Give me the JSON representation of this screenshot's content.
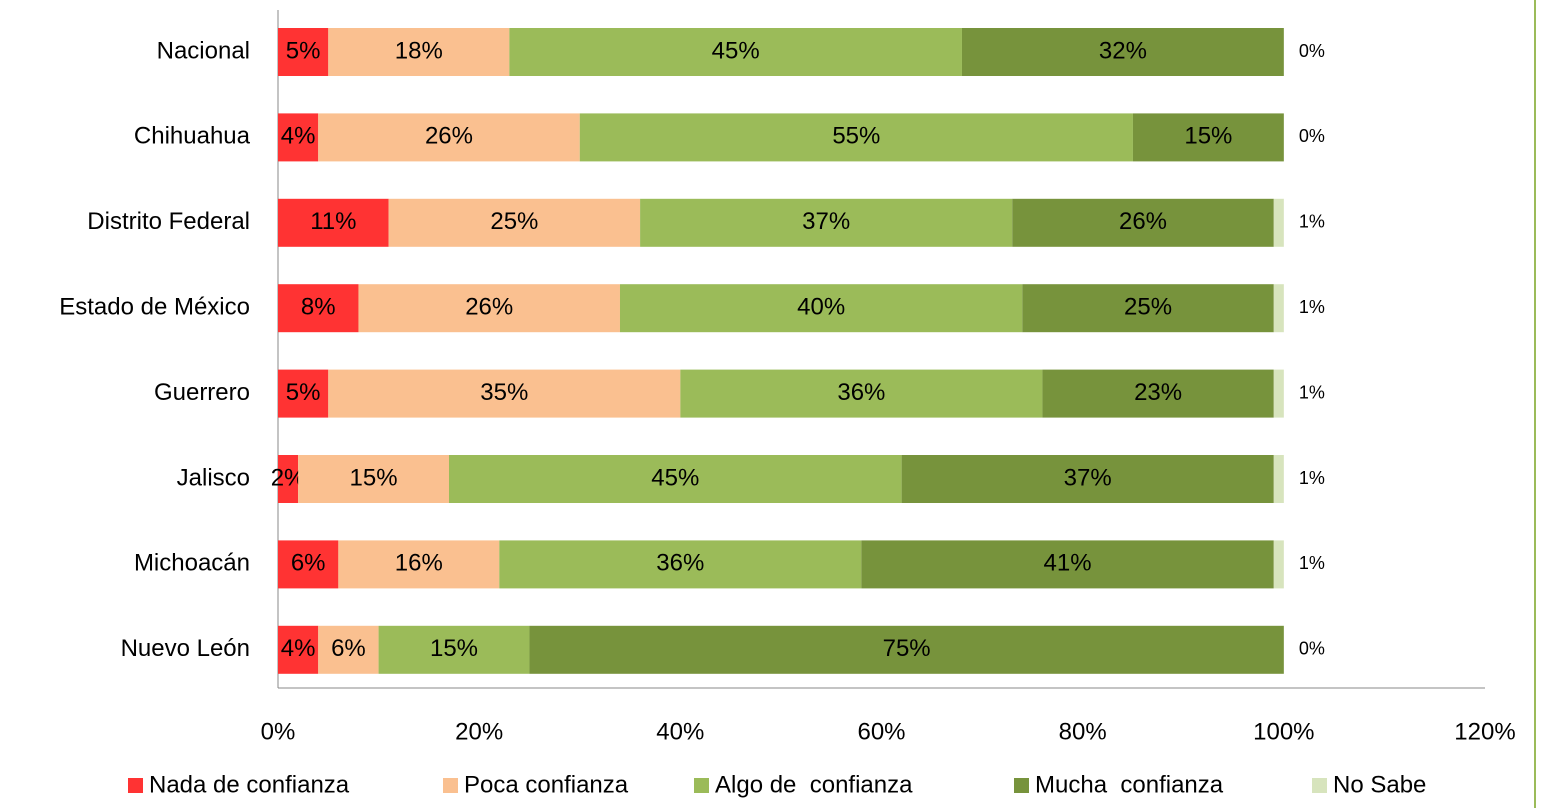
{
  "chart_data": {
    "type": "stacked-bar-horizontal",
    "categories": [
      "Nacional",
      "Chihuahua",
      "Distrito Federal",
      "Estado de México",
      "Guerrero",
      "Jalisco",
      "Michoacán",
      "Nuevo León"
    ],
    "series": [
      {
        "name": "Nada de confianza",
        "color": "#ff3333",
        "values": [
          5,
          4,
          11,
          8,
          5,
          2,
          6,
          4
        ],
        "value_labels": [
          "5%",
          "4%",
          "11%",
          "8%",
          "5%",
          "2%",
          "6%",
          "4%"
        ]
      },
      {
        "name": "Poca confianza",
        "color": "#fac090",
        "values": [
          18,
          26,
          25,
          26,
          35,
          15,
          16,
          6
        ],
        "value_labels": [
          "18%",
          "26%",
          "25%",
          "26%",
          "35%",
          "15%",
          "16%",
          "6%"
        ]
      },
      {
        "name": "Algo de  confianza",
        "color": "#9bbb59",
        "values": [
          45,
          55,
          37,
          40,
          36,
          45,
          36,
          15
        ],
        "value_labels": [
          "45%",
          "55%",
          "37%",
          "40%",
          "36%",
          "45%",
          "36%",
          "15%"
        ]
      },
      {
        "name": "Mucha  confianza",
        "color": "#77933c",
        "values": [
          32,
          15,
          26,
          25,
          23,
          37,
          41,
          75
        ],
        "value_labels": [
          "32%",
          "15%",
          "26%",
          "25%",
          "23%",
          "37%",
          "41%",
          "75%"
        ]
      },
      {
        "name": "No Sabe",
        "color": "#d7e4bd",
        "values": [
          0,
          0,
          1,
          1,
          1,
          1,
          1,
          0
        ],
        "value_labels": [
          "0%",
          "0%",
          "1%",
          "1%",
          "1%",
          "1%",
          "1%",
          "0%"
        ]
      }
    ],
    "xlim": [
      0,
      120
    ],
    "xticks": [
      {
        "value": 0,
        "label": "0%"
      },
      {
        "value": 20,
        "label": "20%"
      },
      {
        "value": 40,
        "label": "40%"
      },
      {
        "value": 60,
        "label": "60%"
      },
      {
        "value": 80,
        "label": "80%"
      },
      {
        "value": 100,
        "label": "100%"
      },
      {
        "value": 120,
        "label": "120%"
      }
    ],
    "grid": false,
    "legend": "bottom"
  }
}
